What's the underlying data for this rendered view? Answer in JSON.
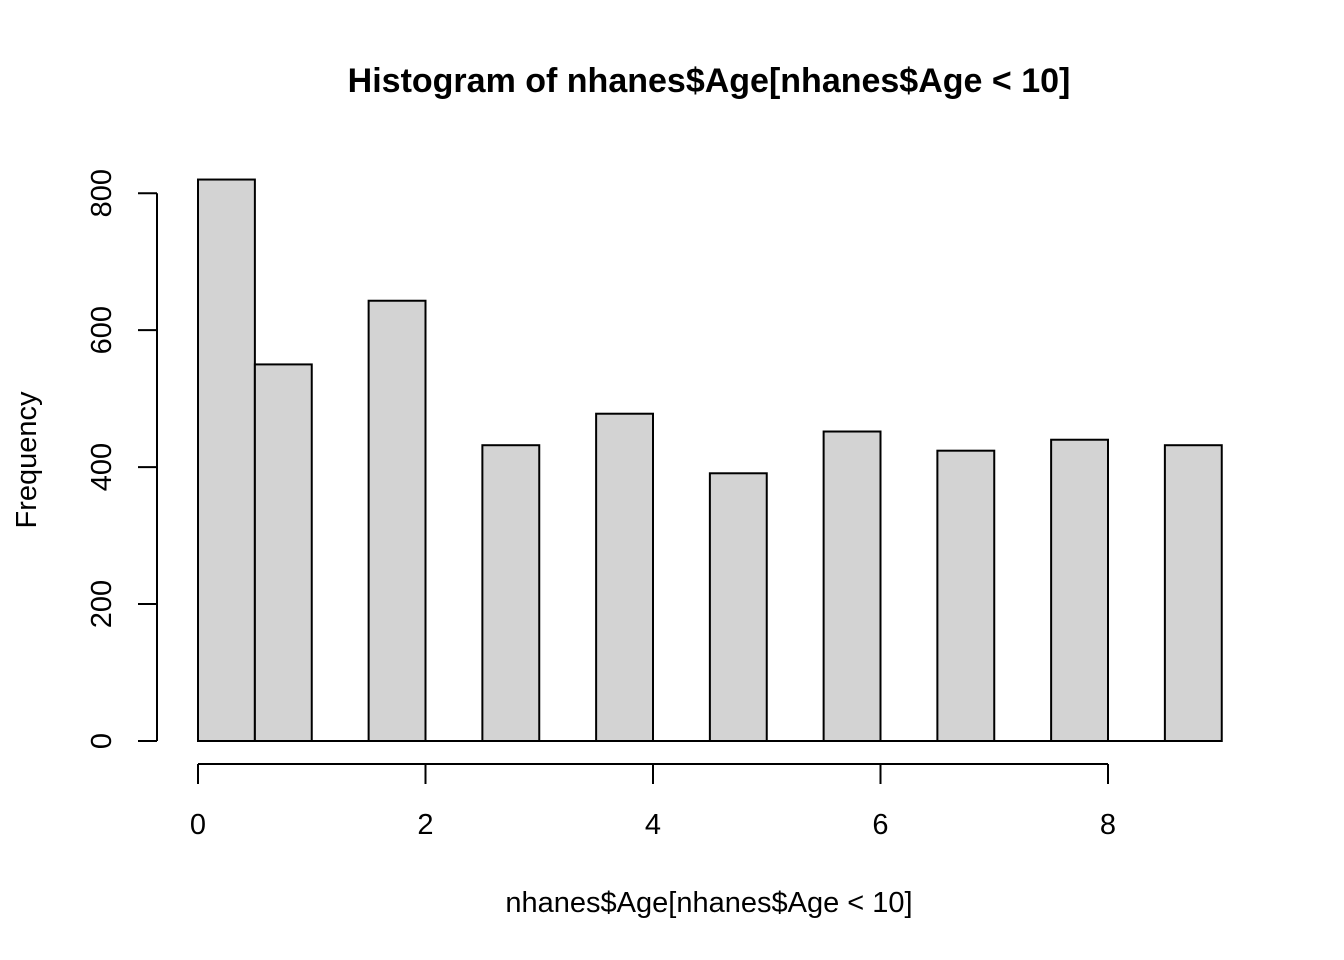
{
  "chart_data": {
    "type": "bar",
    "title": "Histogram of nhanes$Age[nhanes$Age < 10]",
    "xlabel": "nhanes$Age[nhanes$Age < 10]",
    "ylabel": "Frequency",
    "bins": [
      {
        "x0": 0.0,
        "x1": 0.5,
        "value": 820
      },
      {
        "x0": 0.5,
        "x1": 1.0,
        "value": 550
      },
      {
        "x0": 1.0,
        "x1": 1.5,
        "value": 0
      },
      {
        "x0": 1.5,
        "x1": 2.0,
        "value": 643
      },
      {
        "x0": 2.0,
        "x1": 2.5,
        "value": 0
      },
      {
        "x0": 2.5,
        "x1": 3.0,
        "value": 432
      },
      {
        "x0": 3.0,
        "x1": 3.5,
        "value": 0
      },
      {
        "x0": 3.5,
        "x1": 4.0,
        "value": 478
      },
      {
        "x0": 4.0,
        "x1": 4.5,
        "value": 0
      },
      {
        "x0": 4.5,
        "x1": 5.0,
        "value": 391
      },
      {
        "x0": 5.0,
        "x1": 5.5,
        "value": 0
      },
      {
        "x0": 5.5,
        "x1": 6.0,
        "value": 452
      },
      {
        "x0": 6.0,
        "x1": 6.5,
        "value": 0
      },
      {
        "x0": 6.5,
        "x1": 7.0,
        "value": 424
      },
      {
        "x0": 7.0,
        "x1": 7.5,
        "value": 0
      },
      {
        "x0": 7.5,
        "x1": 8.0,
        "value": 440
      },
      {
        "x0": 8.0,
        "x1": 8.5,
        "value": 0
      },
      {
        "x0": 8.5,
        "x1": 9.0,
        "value": 432
      }
    ],
    "xticks": [
      0,
      2,
      4,
      6,
      8
    ],
    "yticks": [
      0,
      200,
      400,
      600,
      800
    ],
    "xlim": [
      0,
      9
    ],
    "ylim": [
      0,
      820
    ],
    "bar_fill": "#d3d3d3",
    "bar_stroke": "#000000",
    "grid": false,
    "legend": "none"
  }
}
